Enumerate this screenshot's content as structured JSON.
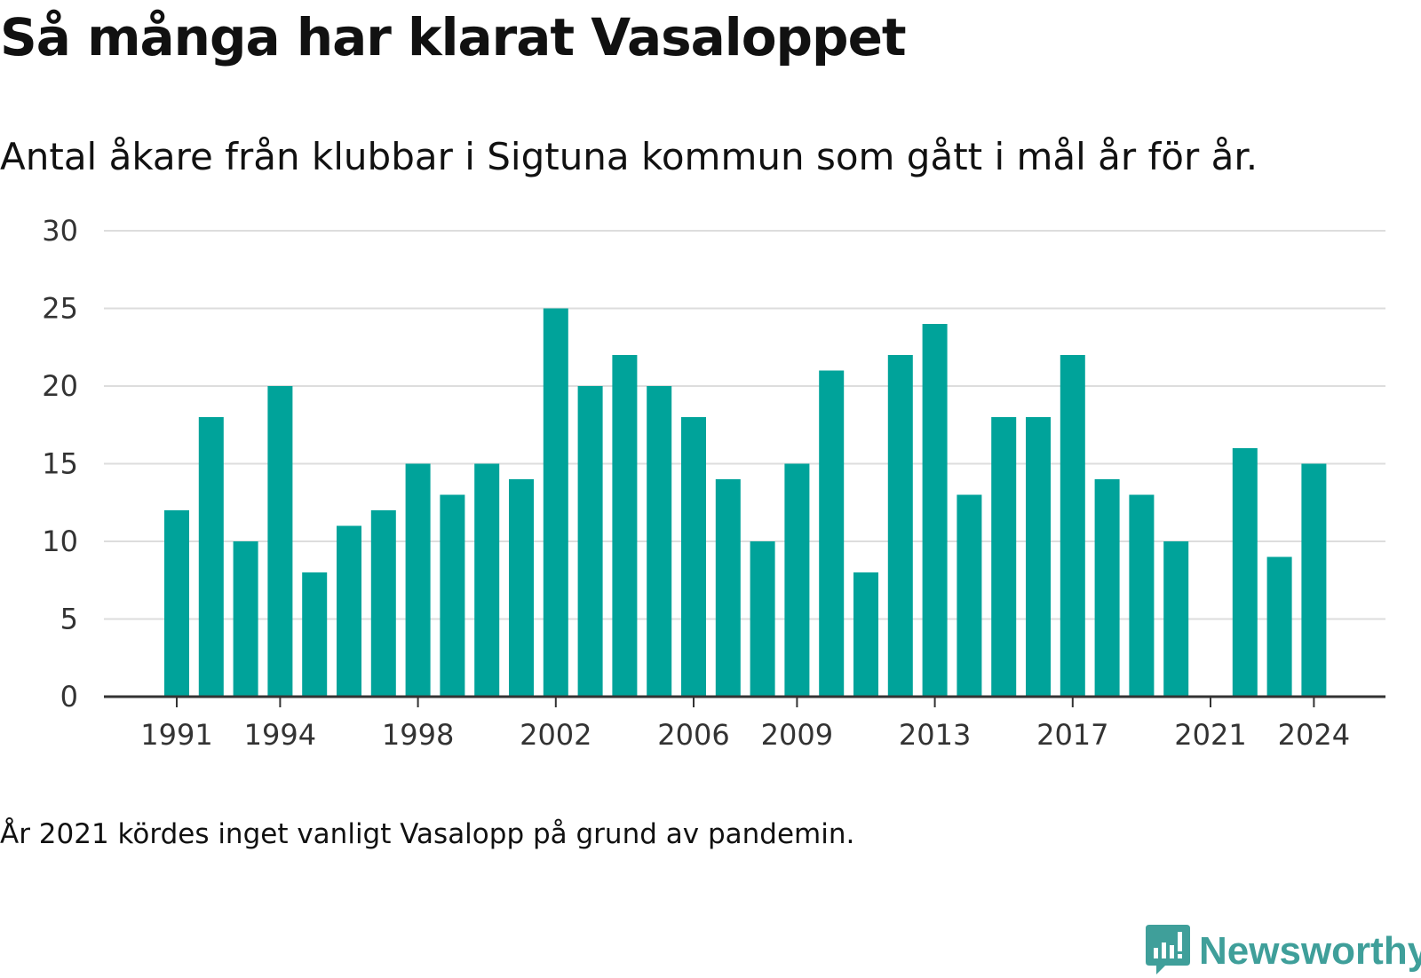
{
  "title": "Så många har klarat Vasaloppet",
  "subtitle": "Antal åkare från klubbar i Sigtuna kommun som gått i mål år för år.",
  "footnote": "År 2021 kördes inget vanligt Vasalopp på grund av pandemin.",
  "brand": {
    "name": "Newsworthy",
    "color": "#3f9f9a",
    "icon": "bar-chart-speech-bubble-icon"
  },
  "colors": {
    "bar": "#00a39a",
    "grid": "#dddddd",
    "axis": "#333333"
  },
  "chart_data": {
    "type": "bar",
    "categories": [
      "1991",
      "1992",
      "1993",
      "1994",
      "1995",
      "1996",
      "1997",
      "1998",
      "1999",
      "2000",
      "2001",
      "2002",
      "2003",
      "2004",
      "2005",
      "2006",
      "2007",
      "2008",
      "2009",
      "2010",
      "2011",
      "2012",
      "2013",
      "2014",
      "2015",
      "2016",
      "2017",
      "2018",
      "2019",
      "2020",
      "2021",
      "2022",
      "2023",
      "2024"
    ],
    "values": [
      12,
      18,
      10,
      20,
      8,
      11,
      12,
      15,
      13,
      15,
      14,
      25,
      20,
      22,
      20,
      18,
      14,
      10,
      15,
      21,
      8,
      22,
      24,
      13,
      18,
      18,
      22,
      14,
      13,
      10,
      0,
      16,
      9,
      15
    ],
    "x_tick_labels": [
      "1991",
      "1994",
      "1998",
      "2002",
      "2006",
      "2009",
      "2013",
      "2017",
      "2021",
      "2024"
    ],
    "y_ticks": [
      0,
      5,
      10,
      15,
      20,
      25,
      30
    ],
    "ylim": [
      0,
      30
    ],
    "xlabel": "",
    "ylabel": "",
    "grid": true,
    "legend": "none"
  }
}
